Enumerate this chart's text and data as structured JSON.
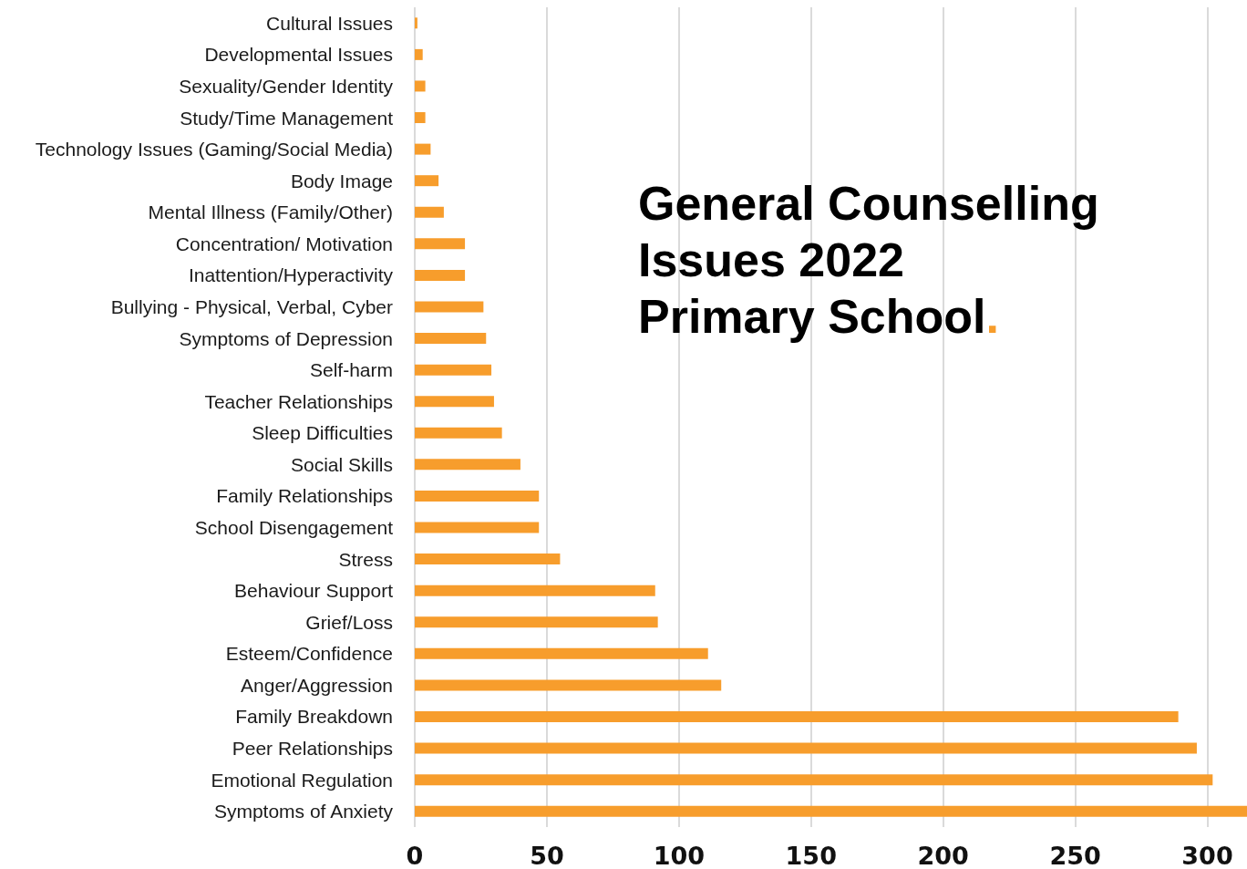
{
  "chart_data": {
    "type": "bar",
    "orientation": "horizontal",
    "title": "General Counselling\nIssues 2022\nPrimary School.",
    "categories": [
      "Cultural Issues",
      "Developmental Issues",
      "Sexuality/Gender Identity",
      "Study/Time Management",
      "Technology Issues (Gaming/Social Media)",
      "Body Image",
      "Mental Illness (Family/Other)",
      "Concentration/ Motivation",
      "Inattention/Hyperactivity",
      "Bullying - Physical, Verbal, Cyber",
      "Symptoms of Depression",
      "Self-harm",
      "Teacher Relationships",
      "Sleep Difficulties",
      "Social Skills",
      "Family Relationships",
      "School Disengagement",
      "Stress",
      "Behaviour Support",
      "Grief/Loss",
      "Esteem/Confidence",
      "Anger/Aggression",
      "Family Breakdown",
      "Peer Relationships",
      "Emotional Regulation",
      "Symptoms of Anxiety"
    ],
    "values": [
      1,
      3,
      4,
      4,
      6,
      9,
      11,
      19,
      19,
      26,
      27,
      29,
      30,
      33,
      40,
      47,
      47,
      55,
      91,
      92,
      111,
      116,
      289,
      296,
      302,
      315
    ],
    "color": "#f79d2c",
    "xlim": [
      0,
      315
    ],
    "xticks": [
      0,
      50,
      100,
      150,
      200,
      250,
      300
    ],
    "grid": "x"
  }
}
